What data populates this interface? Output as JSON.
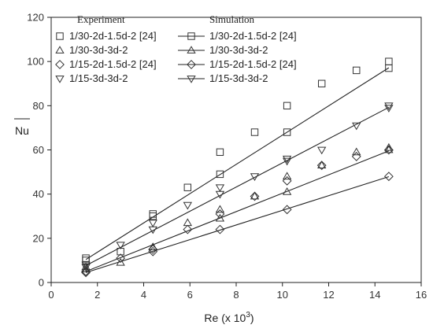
{
  "chart_data": {
    "type": "scatter",
    "xlabel": "Re (x 10",
    "xlabel_exp": "3",
    "xlabel_close": ")",
    "ylabel": "Nu",
    "xlim": [
      0,
      16
    ],
    "ylim": [
      0,
      120
    ],
    "x_ticks": [
      0,
      2,
      4,
      6,
      8,
      10,
      12,
      14,
      16
    ],
    "y_ticks": [
      0,
      20,
      40,
      60,
      80,
      100,
      120
    ],
    "legend_heading_experiment": "Experiment",
    "legend_heading_simulation": "Simulation",
    "legend_placement": "top-left",
    "grid": false,
    "line_color": "#222222",
    "marker_color": "#333333",
    "series": [
      {
        "name": "1/30-2d-1.5d-2 [24]",
        "marker": "square",
        "experiment": [
          [
            1.5,
            11
          ],
          [
            3,
            14
          ],
          [
            4.4,
            31
          ],
          [
            5.9,
            43
          ],
          [
            7.3,
            59
          ],
          [
            8.8,
            68
          ],
          [
            10.2,
            80
          ],
          [
            11.7,
            90
          ],
          [
            13.2,
            96
          ],
          [
            14.6,
            100
          ]
        ],
        "simulation": [
          [
            1.5,
            10
          ],
          [
            4.4,
            30
          ],
          [
            7.3,
            49
          ],
          [
            10.2,
            68
          ],
          [
            14.6,
            97
          ]
        ]
      },
      {
        "name": "1/30-3d-3d-2",
        "marker": "triangle-up",
        "experiment": [
          [
            1.5,
            7
          ],
          [
            3,
            9
          ],
          [
            4.4,
            16
          ],
          [
            5.9,
            27
          ],
          [
            7.3,
            33
          ],
          [
            8.8,
            39
          ],
          [
            10.2,
            48
          ],
          [
            11.7,
            53
          ],
          [
            13.2,
            59
          ],
          [
            14.6,
            61
          ]
        ],
        "simulation": [
          [
            1.5,
            6
          ],
          [
            4.4,
            16
          ],
          [
            7.3,
            29
          ],
          [
            10.2,
            41
          ],
          [
            14.6,
            60
          ]
        ]
      },
      {
        "name": "1/15-2d-1.5d-2 [24]",
        "marker": "diamond",
        "experiment": [
          [
            1.5,
            5
          ],
          [
            3,
            11
          ],
          [
            4.4,
            15
          ],
          [
            5.9,
            24
          ],
          [
            7.3,
            31
          ],
          [
            8.8,
            39
          ],
          [
            10.2,
            46
          ],
          [
            11.7,
            53
          ],
          [
            13.2,
            57
          ],
          [
            14.6,
            60
          ]
        ],
        "simulation": [
          [
            1.5,
            4.5
          ],
          [
            4.4,
            14
          ],
          [
            7.3,
            24
          ],
          [
            10.2,
            33
          ],
          [
            14.6,
            48
          ]
        ]
      },
      {
        "name": "1/15-3d-3d-2",
        "marker": "triangle-down",
        "experiment": [
          [
            1.5,
            8
          ],
          [
            3,
            17
          ],
          [
            4.4,
            27
          ],
          [
            5.9,
            35
          ],
          [
            7.3,
            43
          ],
          [
            8.8,
            48
          ],
          [
            10.2,
            56
          ],
          [
            11.7,
            60
          ],
          [
            13.2,
            71
          ],
          [
            14.6,
            80
          ]
        ],
        "simulation": [
          [
            1.5,
            7
          ],
          [
            4.4,
            24
          ],
          [
            7.3,
            40
          ],
          [
            10.2,
            55
          ],
          [
            14.6,
            79
          ]
        ]
      }
    ]
  }
}
